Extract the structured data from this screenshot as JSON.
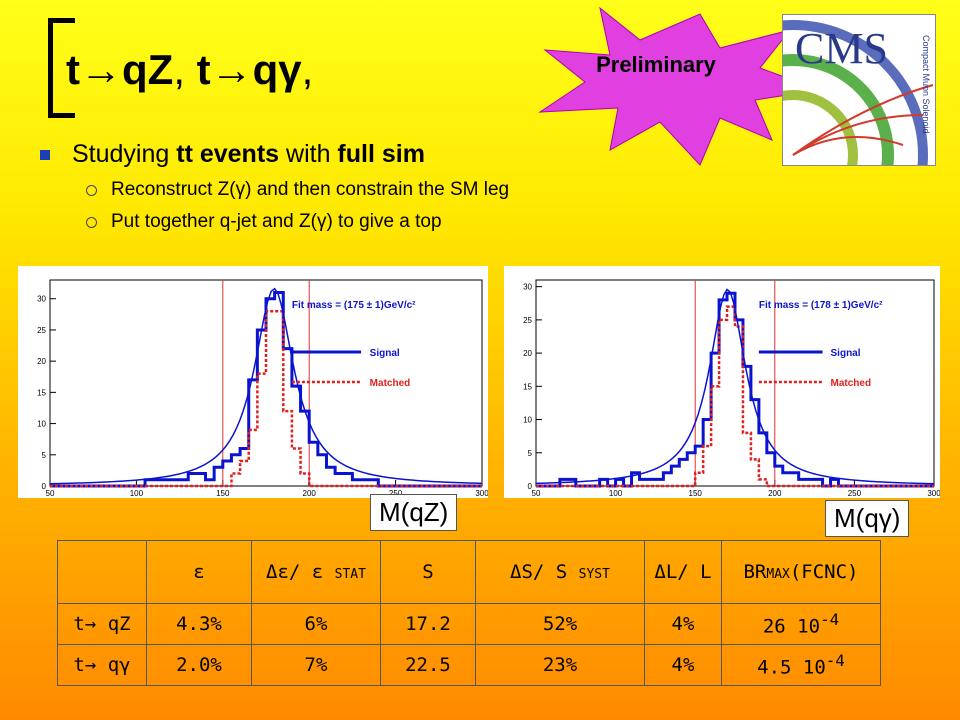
{
  "title": {
    "part1": "t",
    "arrow1": "→",
    "part2": "qZ",
    "sep": ", ",
    "part3": "t",
    "arrow2": "→",
    "part4": "qγ",
    "end": ","
  },
  "badge": "Preliminary",
  "logo": {
    "name": "CMS",
    "subtitle": "Compact Muon Solenoid"
  },
  "bullets": {
    "main": {
      "pre": "Studying ",
      "b1": "tt events",
      "mid": " with ",
      "b2": "full sim"
    },
    "sub": [
      "Reconstruct Z(γ) and then constrain the SM leg",
      "Put together q-jet and Z(γ) to give a top"
    ]
  },
  "labels": {
    "left": "M(qZ)",
    "right": "M(qγ)"
  },
  "table": {
    "headers": [
      "ε",
      "Δε/ ε STAT",
      "S",
      "ΔS/ S SYST",
      "ΔL/ L",
      "BRMAX(FCNC)"
    ],
    "rows": [
      {
        "label": "t→ qZ",
        "cells": [
          "4.3%",
          "6%",
          "17.2",
          "52%",
          "4%"
        ],
        "br": "26 10",
        "exp": "-4"
      },
      {
        "label": "t→ qγ",
        "cells": [
          "2.0%",
          "7%",
          "22.5",
          "23%",
          "4%"
        ],
        "br": "4.5 10",
        "exp": "-4"
      }
    ]
  },
  "chart_data": [
    {
      "type": "line",
      "xlim": [
        50,
        300
      ],
      "ylim": [
        0,
        33
      ],
      "xticks": [
        50,
        100,
        150,
        200,
        250,
        300
      ],
      "yticks": [
        0,
        5,
        10,
        15,
        20,
        25,
        30
      ],
      "fit_text": "Fit mass = (175 ± 1)GeV/c²",
      "legend": [
        "Signal",
        "Matched"
      ],
      "cut_lines": [
        150,
        200
      ],
      "bin_edges_start": 50,
      "bin_width": 5,
      "signal": [
        0,
        0,
        0,
        0,
        0,
        0,
        0,
        0,
        0,
        0,
        0,
        1,
        1,
        1,
        1,
        1,
        2,
        2,
        1,
        3,
        4,
        5,
        6,
        17,
        25,
        30,
        31,
        22,
        16,
        12,
        7,
        5,
        3,
        2,
        2,
        1,
        1,
        1,
        0,
        0,
        0,
        0,
        0,
        0,
        0,
        0,
        0,
        0,
        0,
        0
      ],
      "matched": [
        0,
        0,
        0,
        0,
        0,
        0,
        0,
        0,
        0,
        0,
        0,
        0,
        0,
        0,
        0,
        0,
        0,
        0,
        0,
        0,
        0,
        2,
        4,
        9,
        18,
        28,
        28,
        12,
        6,
        2,
        0,
        0,
        0,
        0,
        0,
        0,
        0,
        0,
        0,
        0,
        0,
        0,
        0,
        0,
        0,
        0,
        0,
        0,
        0,
        0
      ]
    },
    {
      "type": "line",
      "xlim": [
        50,
        300
      ],
      "ylim": [
        0,
        31
      ],
      "xticks": [
        50,
        100,
        150,
        200,
        250,
        300
      ],
      "yticks": [
        0,
        5,
        10,
        15,
        20,
        25,
        30
      ],
      "fit_text": "Fit mass = (178 ± 1)GeV/c²",
      "legend": [
        "Signal",
        "Matched"
      ],
      "cut_lines": [
        150,
        200
      ],
      "bin_edges_start": 50,
      "bin_width": 5,
      "signal": [
        0,
        0,
        0,
        1,
        1,
        0,
        0,
        0,
        1,
        0,
        1,
        0,
        2,
        1,
        1,
        1,
        2,
        3,
        4,
        5,
        6,
        10,
        20,
        28,
        29,
        25,
        18,
        13,
        8,
        5,
        3,
        2,
        2,
        1,
        1,
        1,
        0,
        1,
        0,
        0,
        0,
        0,
        0,
        0,
        0,
        0,
        0,
        0,
        0,
        0
      ],
      "matched": [
        0,
        0,
        0,
        0,
        0,
        0,
        0,
        0,
        0,
        0,
        0,
        0,
        0,
        0,
        0,
        0,
        0,
        0,
        0,
        0,
        2,
        6,
        15,
        25,
        27,
        24,
        8,
        4,
        1,
        0,
        0,
        0,
        0,
        0,
        0,
        0,
        0,
        0,
        0,
        0,
        0,
        0,
        0,
        0,
        0,
        0,
        0,
        0,
        0,
        0
      ]
    }
  ]
}
